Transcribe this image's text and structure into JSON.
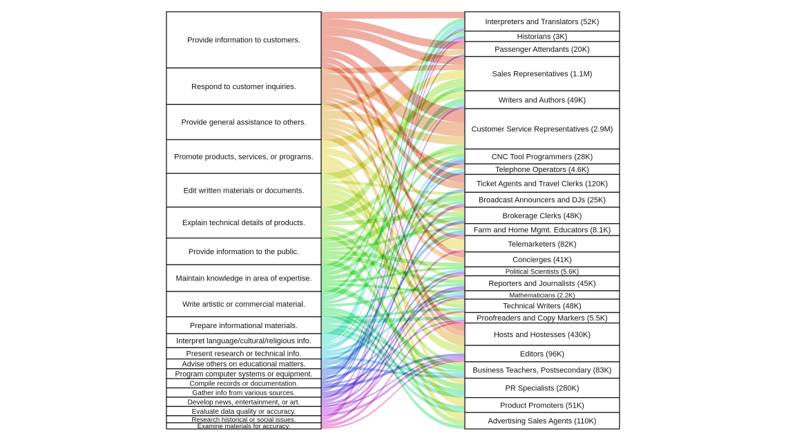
{
  "diagram": {
    "type": "sankey",
    "flow_opacity": 0.55,
    "left_nodes": [
      {
        "label": "Provide information to customers.",
        "weight": 2.0
      },
      {
        "label": "Respond to customer inquiries.",
        "weight": 1.3
      },
      {
        "label": "Provide general assistance to others.",
        "weight": 1.25
      },
      {
        "label": "Promote products, services, or programs.",
        "weight": 1.2
      },
      {
        "label": "Edit written materials or documents.",
        "weight": 1.2
      },
      {
        "label": "Explain technical details of products.",
        "weight": 1.1
      },
      {
        "label": "Provide information to the public.",
        "weight": 0.95
      },
      {
        "label": "Maintain knowledge in area of expertise.",
        "weight": 0.95
      },
      {
        "label": "Write artistic or commercial material.",
        "weight": 0.9
      },
      {
        "label": "Prepare informational materials.",
        "weight": 0.6
      },
      {
        "label": "Interpret language/cultural/religious info.",
        "weight": 0.5
      },
      {
        "label": "Present research or technical info.",
        "weight": 0.4
      },
      {
        "label": "Advise others on educational matters.",
        "weight": 0.35
      },
      {
        "label": "Program computer systems or equipment.",
        "weight": 0.35
      },
      {
        "label": "Compile records or documentation.",
        "weight": 0.33
      },
      {
        "label": "Gather info from various sources.",
        "weight": 0.33
      },
      {
        "label": "Develop news, entertainment, or art.",
        "weight": 0.33
      },
      {
        "label": "Evaluate data quality or accuracy.",
        "weight": 0.33
      },
      {
        "label": "Research historical or social issues.",
        "weight": 0.25
      },
      {
        "label": "Examine materials for accuracy.",
        "weight": 0.22
      }
    ],
    "right_nodes": [
      {
        "label": "Interpreters and Translators (52K)",
        "weight": 0.65
      },
      {
        "label": "Historians (3K)",
        "weight": 0.35
      },
      {
        "label": "Passenger Attendants (20K)",
        "weight": 0.5
      },
      {
        "label": "Sales Representatives (1.1M)",
        "weight": 1.15
      },
      {
        "label": "Writers and Authors (49K)",
        "weight": 0.6
      },
      {
        "label": "Customer Service Representatives (2.9M)",
        "weight": 1.35
      },
      {
        "label": "CNC Tool Programmers (28K)",
        "weight": 0.5
      },
      {
        "label": "Telephone Operators (4.6K)",
        "weight": 0.35
      },
      {
        "label": "Ticket Agents and Travel Clerks (120K)",
        "weight": 0.6
      },
      {
        "label": "Broadcast Announcers and DJs (25K)",
        "weight": 0.5
      },
      {
        "label": "Brokerage Clerks (48K)",
        "weight": 0.55
      },
      {
        "label": "Farm and Home Mgmt. Educators (8.1K)",
        "weight": 0.4
      },
      {
        "label": "Telemarketers (82K)",
        "weight": 0.55
      },
      {
        "label": "Concierges (41K)",
        "weight": 0.5
      },
      {
        "label": "Political Scientists (5.6K)",
        "weight": 0.3
      },
      {
        "label": "Reporters and Journalists (45K)",
        "weight": 0.5
      },
      {
        "label": "Mathematicians (2.2K)",
        "weight": 0.28
      },
      {
        "label": "Technical Writers (48K)",
        "weight": 0.45
      },
      {
        "label": "Proofreaders and Copy Markers (5.5K)",
        "weight": 0.35
      },
      {
        "label": "Hosts and Hostesses (430K)",
        "weight": 0.75
      },
      {
        "label": "Editors (96K)",
        "weight": 0.55
      },
      {
        "label": "Business Teachers, Postsecondary (83K)",
        "weight": 0.55
      },
      {
        "label": "PR Specialists (280K)",
        "weight": 0.65
      },
      {
        "label": "Product Promoters (51K)",
        "weight": 0.5
      },
      {
        "label": "Advertising Sales Agents (110K)",
        "weight": 0.55
      }
    ],
    "flows": [
      [
        0,
        0,
        0.25
      ],
      [
        0,
        2,
        0.3
      ],
      [
        0,
        3,
        0.3
      ],
      [
        0,
        5,
        0.5
      ],
      [
        0,
        8,
        0.25
      ],
      [
        0,
        13,
        0.2
      ],
      [
        0,
        19,
        0.2
      ],
      [
        1,
        5,
        0.5
      ],
      [
        1,
        3,
        0.2
      ],
      [
        1,
        7,
        0.15
      ],
      [
        1,
        8,
        0.2
      ],
      [
        1,
        19,
        0.15
      ],
      [
        1,
        12,
        0.1
      ],
      [
        2,
        5,
        0.3
      ],
      [
        2,
        2,
        0.2
      ],
      [
        2,
        13,
        0.2
      ],
      [
        2,
        19,
        0.25
      ],
      [
        2,
        10,
        0.15
      ],
      [
        2,
        11,
        0.15
      ],
      [
        3,
        3,
        0.3
      ],
      [
        3,
        12,
        0.25
      ],
      [
        3,
        23,
        0.25
      ],
      [
        3,
        24,
        0.2
      ],
      [
        3,
        22,
        0.2
      ],
      [
        4,
        4,
        0.25
      ],
      [
        4,
        20,
        0.3
      ],
      [
        4,
        18,
        0.2
      ],
      [
        4,
        17,
        0.2
      ],
      [
        4,
        15,
        0.15
      ],
      [
        4,
        9,
        0.1
      ],
      [
        5,
        3,
        0.3
      ],
      [
        5,
        6,
        0.2
      ],
      [
        5,
        10,
        0.15
      ],
      [
        5,
        17,
        0.15
      ],
      [
        5,
        21,
        0.15
      ],
      [
        5,
        24,
        0.15
      ],
      [
        6,
        9,
        0.2
      ],
      [
        6,
        15,
        0.15
      ],
      [
        6,
        22,
        0.2
      ],
      [
        6,
        13,
        0.15
      ],
      [
        6,
        11,
        0.1
      ],
      [
        6,
        5,
        0.15
      ],
      [
        7,
        21,
        0.2
      ],
      [
        7,
        14,
        0.1
      ],
      [
        7,
        16,
        0.1
      ],
      [
        7,
        6,
        0.15
      ],
      [
        7,
        1,
        0.1
      ],
      [
        7,
        3,
        0.15
      ],
      [
        7,
        10,
        0.15
      ],
      [
        8,
        4,
        0.2
      ],
      [
        8,
        9,
        0.1
      ],
      [
        8,
        15,
        0.1
      ],
      [
        8,
        22,
        0.15
      ],
      [
        8,
        23,
        0.1
      ],
      [
        8,
        24,
        0.1
      ],
      [
        8,
        0,
        0.15
      ],
      [
        9,
        22,
        0.15
      ],
      [
        9,
        21,
        0.1
      ],
      [
        9,
        17,
        0.1
      ],
      [
        9,
        23,
        0.1
      ],
      [
        9,
        18,
        0.15
      ],
      [
        10,
        0,
        0.25
      ],
      [
        10,
        1,
        0.1
      ],
      [
        10,
        7,
        0.1
      ],
      [
        10,
        4,
        0.05
      ],
      [
        11,
        14,
        0.1
      ],
      [
        11,
        16,
        0.1
      ],
      [
        11,
        21,
        0.1
      ],
      [
        11,
        6,
        0.1
      ],
      [
        12,
        11,
        0.15
      ],
      [
        12,
        21,
        0.1
      ],
      [
        12,
        8,
        0.1
      ],
      [
        13,
        6,
        0.2
      ],
      [
        13,
        16,
        0.08
      ],
      [
        13,
        7,
        0.07
      ],
      [
        14,
        20,
        0.1
      ],
      [
        14,
        10,
        0.1
      ],
      [
        14,
        18,
        0.05
      ],
      [
        14,
        1,
        0.08
      ],
      [
        15,
        15,
        0.1
      ],
      [
        15,
        14,
        0.1
      ],
      [
        15,
        0,
        0.05
      ],
      [
        15,
        2,
        0.08
      ],
      [
        16,
        9,
        0.12
      ],
      [
        16,
        4,
        0.08
      ],
      [
        16,
        15,
        0.08
      ],
      [
        16,
        20,
        0.05
      ],
      [
        17,
        20,
        0.1
      ],
      [
        17,
        16,
        0.1
      ],
      [
        17,
        17,
        0.08
      ],
      [
        17,
        11,
        0.05
      ],
      [
        18,
        1,
        0.12
      ],
      [
        18,
        14,
        0.08
      ],
      [
        18,
        0,
        0.05
      ],
      [
        19,
        18,
        0.1
      ],
      [
        19,
        20,
        0.06
      ],
      [
        19,
        12,
        0.06
      ]
    ]
  }
}
